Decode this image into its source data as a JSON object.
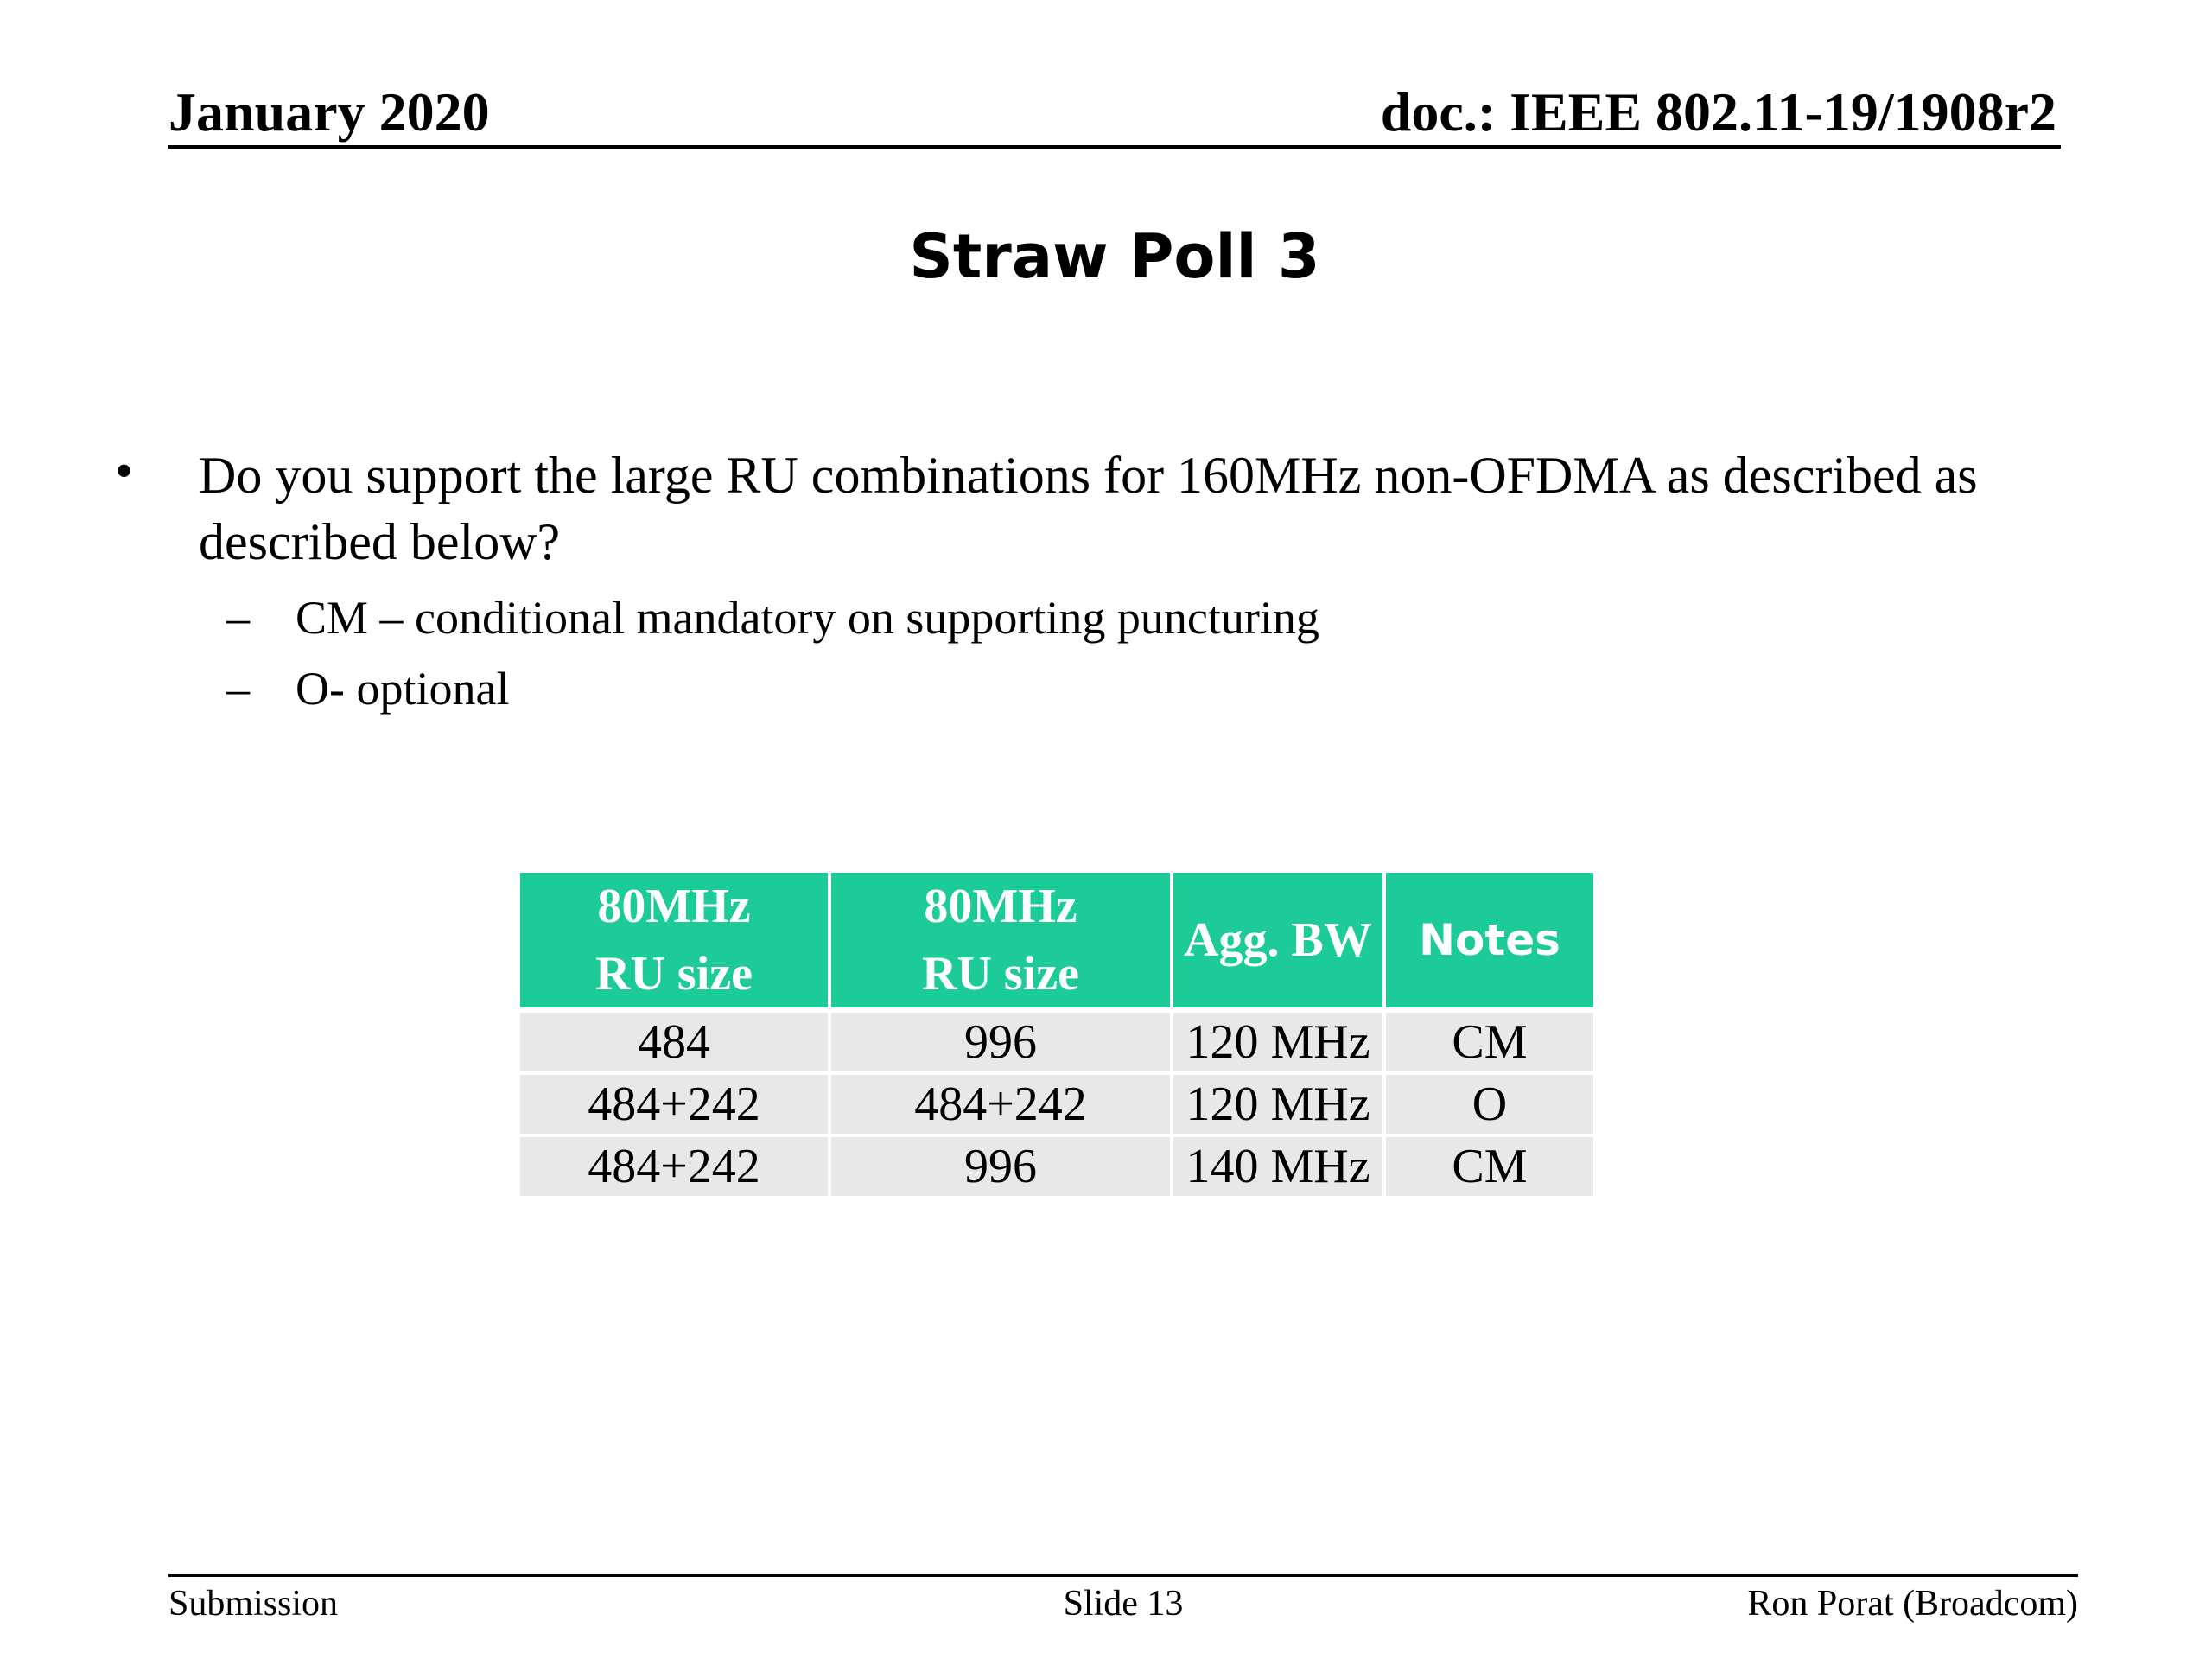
{
  "header": {
    "date": "January 2020",
    "doc_id": "doc.: IEEE 802.11-19/1908r2"
  },
  "title": "Straw Poll 3",
  "bullet": {
    "marker": "•",
    "text": "Do you support the large RU combinations for 160MHz non-OFDMA as described as described below?",
    "sub_items": [
      {
        "marker": "–",
        "text": "CM – conditional mandatory on supporting puncturing"
      },
      {
        "marker": "–",
        "text": "O- optional"
      }
    ]
  },
  "table": {
    "header_color": "#1ccb97",
    "row_color": "#e8e8e8",
    "headers": [
      {
        "line1": "80MHz",
        "line2": "RU size"
      },
      {
        "line1": "80MHz",
        "line2": "RU size"
      },
      {
        "line1": "Agg. BW",
        "line2": ""
      },
      {
        "line1": "Notes",
        "line2": ""
      }
    ],
    "rows": [
      [
        "484",
        "996",
        "120 MHz",
        "CM"
      ],
      [
        "484+242",
        "484+242",
        "120 MHz",
        "O"
      ],
      [
        "484+242",
        "996",
        "140 MHz",
        "CM"
      ]
    ]
  },
  "footer": {
    "left": "Submission",
    "center": "Slide 13",
    "right": "Ron Porat (Broadcom)"
  }
}
